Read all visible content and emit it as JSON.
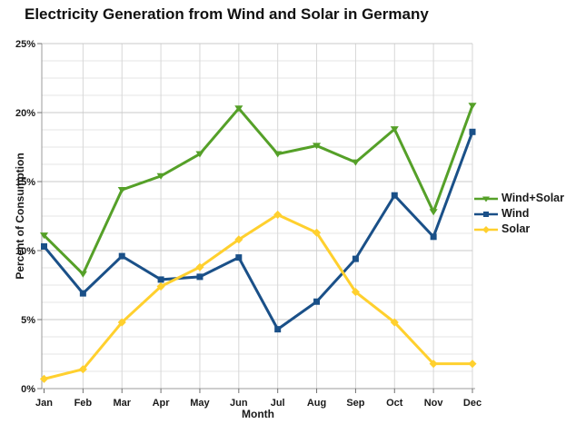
{
  "title": "Electricity Generation from Wind and Solar in Germany",
  "chart_data": {
    "type": "line",
    "title": "Electricity Generation from Wind and Solar in Germany",
    "xlabel": "Month",
    "ylabel": "Percent of Consumption",
    "categories": [
      "Jan",
      "Feb",
      "Mar",
      "Apr",
      "May",
      "Jun",
      "Jul",
      "Aug",
      "Sep",
      "Oct",
      "Nov",
      "Dec"
    ],
    "ylim": [
      0,
      25
    ],
    "yticks": [
      0,
      5,
      10,
      15,
      20,
      25
    ],
    "ytick_labels": [
      "0%",
      "5%",
      "10%",
      "15%",
      "20%",
      "25%"
    ],
    "minor_gridline_step": 1.25,
    "grid": true,
    "legend_position": "right-middle",
    "series": [
      {
        "name": "Wind+Solar",
        "color": "#55A028",
        "marker": "triangle-down",
        "values": [
          11.1,
          8.3,
          14.4,
          15.4,
          17.0,
          20.3,
          17.0,
          17.6,
          16.4,
          18.8,
          12.8,
          20.5
        ]
      },
      {
        "name": "Wind",
        "color": "#1A5088",
        "marker": "square",
        "values": [
          10.3,
          6.9,
          9.6,
          7.9,
          8.1,
          9.5,
          4.3,
          6.3,
          9.4,
          14.0,
          11.0,
          18.6
        ]
      },
      {
        "name": "Solar",
        "color": "#FFD02E",
        "marker": "diamond",
        "values": [
          0.7,
          1.4,
          4.8,
          7.4,
          8.8,
          10.8,
          12.6,
          11.3,
          7.0,
          4.8,
          1.8,
          1.8
        ]
      }
    ]
  },
  "colors": {
    "background": "#FFFFFF",
    "text": "#1A1A1A",
    "grid_major": "#C9C9C9",
    "grid_minor": "#E5E5E5",
    "grid_vertical": "#D7D7D7",
    "axis": "#9B9B9B",
    "tick": "#707070"
  }
}
